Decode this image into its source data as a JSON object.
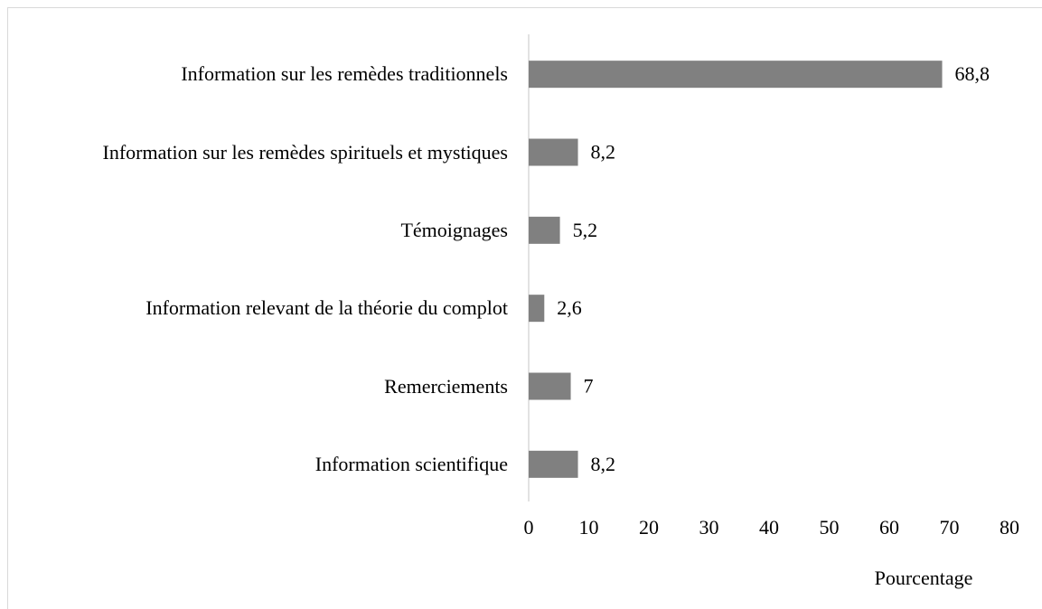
{
  "chart_data": {
    "type": "bar",
    "orientation": "horizontal",
    "categories": [
      "Information sur les remèdes traditionnels",
      "Information sur les remèdes spirituels et mystiques",
      "Témoignages",
      "Information relevant de la théorie du complot",
      "Remerciements",
      "Information scientifique"
    ],
    "values": [
      68.8,
      8.2,
      5.2,
      2.6,
      7,
      8.2
    ],
    "value_labels": [
      "68,8",
      "8,2",
      "5,2",
      "2,6",
      "7",
      "8,2"
    ],
    "color": "#808080",
    "xlim": [
      0,
      80
    ],
    "xticks": [
      0,
      10,
      20,
      30,
      40,
      50,
      60,
      70,
      80
    ],
    "xlabel": "Pourcentage"
  }
}
